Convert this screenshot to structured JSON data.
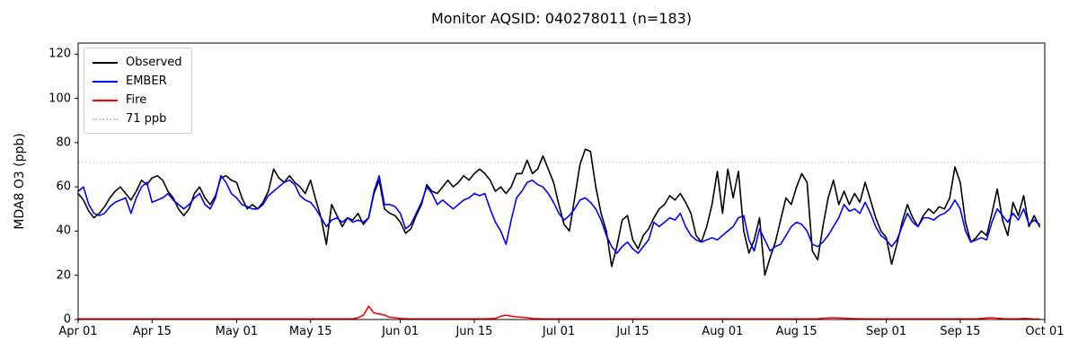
{
  "chart_data": {
    "type": "line",
    "title": "Monitor AQSID: 040278011 (n=183)",
    "ylabel": "MDA8 O3 (ppb)",
    "xlabel": "",
    "ylim": [
      0,
      125
    ],
    "grid": false,
    "legend_position": "upper left",
    "x_days": 183,
    "start_date": "Apr 01",
    "end_date": "Oct 01",
    "n_points": 183,
    "y_ticks": [
      0,
      20,
      40,
      60,
      80,
      100,
      120
    ],
    "x_ticks": [
      {
        "day": 0,
        "label": "Apr 01"
      },
      {
        "day": 14,
        "label": "Apr 15"
      },
      {
        "day": 30,
        "label": "May 01"
      },
      {
        "day": 44,
        "label": "May 15"
      },
      {
        "day": 61,
        "label": "Jun 01"
      },
      {
        "day": 75,
        "label": "Jun 15"
      },
      {
        "day": 91,
        "label": "Jul 01"
      },
      {
        "day": 105,
        "label": "Jul 15"
      },
      {
        "day": 122,
        "label": "Aug 01"
      },
      {
        "day": 136,
        "label": "Aug 15"
      },
      {
        "day": 153,
        "label": "Sep 01"
      },
      {
        "day": 167,
        "label": "Sep 15"
      },
      {
        "day": 183,
        "label": "Oct 01"
      }
    ],
    "threshold": {
      "label": "71 ppb",
      "value": 71,
      "color": "#c8c8c8",
      "style": "dotted"
    },
    "series": [
      {
        "name": "Observed",
        "color": "#000000",
        "style": "solid",
        "values": [
          57,
          54,
          49,
          46,
          48,
          51,
          55,
          58,
          60,
          57,
          54,
          58,
          63,
          61,
          64,
          65,
          63,
          58,
          55,
          50,
          47,
          50,
          57,
          60,
          55,
          52,
          56,
          64,
          65,
          63,
          62,
          55,
          50,
          52,
          50,
          53,
          58,
          68,
          64,
          62,
          65,
          62,
          60,
          57,
          63,
          54,
          46,
          34,
          52,
          47,
          42,
          46,
          45,
          48,
          43,
          46,
          57,
          63,
          50,
          48,
          47,
          44,
          39,
          41,
          47,
          52,
          61,
          58,
          57,
          60,
          63,
          60,
          62,
          65,
          63,
          66,
          68,
          66,
          63,
          58,
          60,
          57,
          60,
          66,
          66,
          72,
          66,
          68,
          74,
          68,
          62,
          52,
          43,
          40,
          55,
          70,
          77,
          76,
          60,
          48,
          40,
          24,
          33,
          45,
          47,
          36,
          32,
          38,
          41,
          46,
          50,
          52,
          56,
          54,
          57,
          53,
          48,
          38,
          35,
          42,
          52,
          67,
          48,
          68,
          55,
          67,
          40,
          30,
          36,
          46,
          20,
          28,
          35,
          45,
          55,
          52,
          60,
          66,
          62,
          31,
          27,
          42,
          55,
          63,
          52,
          58,
          52,
          57,
          53,
          62,
          54,
          46,
          40,
          37,
          25,
          34,
          44,
          52,
          46,
          42,
          47,
          50,
          48,
          51,
          50,
          55,
          69,
          62,
          44,
          35,
          37,
          40,
          38,
          48,
          59,
          45,
          38,
          53,
          47,
          56,
          42,
          47,
          42
        ]
      },
      {
        "name": "EMBER",
        "color": "#0000ff",
        "style": "solid",
        "values": [
          58,
          60,
          52,
          48,
          47,
          48,
          51,
          53,
          54,
          55,
          48,
          55,
          60,
          62,
          53,
          54,
          55,
          57,
          54,
          52,
          50,
          52,
          55,
          57,
          52,
          50,
          55,
          65,
          62,
          57,
          55,
          52,
          51,
          50,
          50,
          52,
          56,
          58,
          60,
          62,
          63,
          61,
          56,
          54,
          53,
          50,
          46,
          42,
          45,
          46,
          44,
          46,
          44,
          45,
          44,
          46,
          58,
          65,
          52,
          52,
          51,
          48,
          41,
          43,
          48,
          53,
          60,
          57,
          52,
          54,
          52,
          50,
          52,
          54,
          55,
          57,
          56,
          57,
          50,
          44,
          40,
          34,
          45,
          55,
          58,
          62,
          63,
          61,
          60,
          57,
          53,
          48,
          45,
          47,
          50,
          54,
          55,
          53,
          50,
          45,
          38,
          33,
          30,
          33,
          35,
          32,
          30,
          33,
          36,
          44,
          42,
          44,
          46,
          45,
          48,
          42,
          38,
          36,
          35,
          36,
          37,
          36,
          38,
          40,
          42,
          46,
          47,
          36,
          31,
          41,
          36,
          31,
          33,
          34,
          38,
          42,
          44,
          43,
          40,
          34,
          33,
          35,
          38,
          42,
          46,
          52,
          49,
          50,
          48,
          53,
          48,
          42,
          38,
          36,
          33,
          36,
          42,
          48,
          44,
          42,
          46,
          46,
          45,
          47,
          48,
          50,
          54,
          50,
          40,
          35,
          36,
          37,
          36,
          44,
          50,
          47,
          44,
          48,
          45,
          50,
          43,
          45,
          43
        ]
      },
      {
        "name": "Fire",
        "color": "#ff0000",
        "style": "solid",
        "values": [
          0.3,
          0.3,
          0.3,
          0.3,
          0.3,
          0.3,
          0.3,
          0.3,
          0.3,
          0.3,
          0.3,
          0.3,
          0.3,
          0.3,
          0.3,
          0.3,
          0.3,
          0.3,
          0.3,
          0.3,
          0.3,
          0.3,
          0.3,
          0.3,
          0.3,
          0.3,
          0.3,
          0.3,
          0.3,
          0.3,
          0.3,
          0.3,
          0.3,
          0.3,
          0.3,
          0.3,
          0.3,
          0.3,
          0.3,
          0.3,
          0.3,
          0.3,
          0.3,
          0.3,
          0.3,
          0.3,
          0.3,
          0.3,
          0.3,
          0.3,
          0.3,
          0.3,
          0.3,
          0.8,
          2,
          6,
          3,
          2.5,
          2,
          1,
          0.8,
          0.5,
          0.4,
          0.3,
          0.3,
          0.3,
          0.3,
          0.3,
          0.3,
          0.3,
          0.3,
          0.3,
          0.3,
          0.3,
          0.3,
          0.3,
          0.3,
          0.3,
          0.4,
          0.5,
          1.5,
          2,
          1.5,
          1.2,
          1,
          0.8,
          0.5,
          0.4,
          0.3,
          0.3,
          0.3,
          0.3,
          0.3,
          0.3,
          0.3,
          0.3,
          0.3,
          0.3,
          0.3,
          0.3,
          0.3,
          0.3,
          0.3,
          0.3,
          0.3,
          0.3,
          0.3,
          0.3,
          0.3,
          0.3,
          0.3,
          0.3,
          0.3,
          0.3,
          0.3,
          0.3,
          0.3,
          0.3,
          0.3,
          0.3,
          0.3,
          0.3,
          0.3,
          0.3,
          0.3,
          0.3,
          0.3,
          0.3,
          0.3,
          0.3,
          0.3,
          0.3,
          0.3,
          0.3,
          0.3,
          0.3,
          0.3,
          0.3,
          0.3,
          0.3,
          0.3,
          0.6,
          0.7,
          0.8,
          0.7,
          0.6,
          0.5,
          0.4,
          0.4,
          0.3,
          0.3,
          0.3,
          0.3,
          0.3,
          0.3,
          0.3,
          0.3,
          0.3,
          0.3,
          0.3,
          0.3,
          0.3,
          0.3,
          0.3,
          0.3,
          0.3,
          0.3,
          0.3,
          0.3,
          0.3,
          0.3,
          0.5,
          0.7,
          0.8,
          0.6,
          0.4,
          0.3,
          0.3,
          0.3,
          0.5,
          0.4,
          0.2,
          0.2
        ]
      }
    ],
    "legend": {
      "items": [
        {
          "label": "Observed",
          "color": "#000000",
          "style": "solid"
        },
        {
          "label": "EMBER",
          "color": "#0000ff",
          "style": "solid"
        },
        {
          "label": "Fire",
          "color": "#ff0000",
          "style": "solid"
        },
        {
          "label": "71 ppb",
          "color": "#c8c8c8",
          "style": "dotted"
        }
      ]
    }
  }
}
